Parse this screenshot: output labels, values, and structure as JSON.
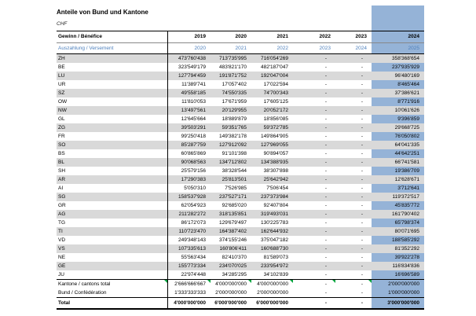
{
  "title": "Anteile von Bund und Kantone",
  "currency": "CHF",
  "colors": {
    "highlight_column": "#95B3D7",
    "row_stripe": "#D9D9D9",
    "secondary_header_text": "#4F81BD",
    "comment_flag": "#00A33C"
  },
  "header": {
    "row1_label": "Gewinn / Bénéfice",
    "row1_years": [
      "2019",
      "2020",
      "2021",
      "2022",
      "2023",
      "2024"
    ],
    "row2_label": "Auszahlung / Versement",
    "row2_years": [
      "2020",
      "2021",
      "2022",
      "2023",
      "2024",
      "2025"
    ]
  },
  "table": {
    "rows": [
      {
        "label": "ZH",
        "values": [
          "473'760'438",
          "713'735'995",
          "716'054'269",
          "-",
          "-",
          "358'368'654"
        ]
      },
      {
        "label": "BE",
        "values": [
          "323'549'179",
          "483'821'170",
          "482'187'047",
          "-",
          "-",
          "237'935'929"
        ]
      },
      {
        "label": "LU",
        "values": [
          "127'794'459",
          "191'871'752",
          "192'047'004",
          "-",
          "-",
          "96'480'169"
        ]
      },
      {
        "label": "UR",
        "values": [
          "11'389'741",
          "17'057'402",
          "17'022'594",
          "-",
          "-",
          "8'465'464"
        ]
      },
      {
        "label": "SZ",
        "values": [
          "49'558'185",
          "74'550'335",
          "74'700'343",
          "-",
          "-",
          "37'386'621"
        ]
      },
      {
        "label": "OW",
        "values": [
          "11'810'053",
          "17'671'959",
          "17'605'125",
          "-",
          "-",
          "8'771'916"
        ]
      },
      {
        "label": "NW",
        "values": [
          "13'497'561",
          "20'129'955",
          "20'052'172",
          "-",
          "-",
          "10'061'626"
        ]
      },
      {
        "label": "GL",
        "values": [
          "12'645'664",
          "18'889'879",
          "18'856'085",
          "-",
          "-",
          "9'396'859"
        ]
      },
      {
        "label": "ZG",
        "values": [
          "39'503'291",
          "59'351'765",
          "59'372'785",
          "-",
          "-",
          "29'668'725"
        ]
      },
      {
        "label": "FR",
        "values": [
          "99'250'418",
          "149'382'178",
          "149'864'905",
          "-",
          "-",
          "76'050'802"
        ]
      },
      {
        "label": "SO",
        "values": [
          "85'287'759",
          "127'912'092",
          "127'969'055",
          "-",
          "-",
          "64'041'335"
        ]
      },
      {
        "label": "BS",
        "values": [
          "60'865'869",
          "91'101'398",
          "90'894'057",
          "-",
          "-",
          "44'642'251"
        ]
      },
      {
        "label": "BL",
        "values": [
          "90'068'563",
          "134'712'802",
          "134'388'935",
          "-",
          "-",
          "66'741'581"
        ]
      },
      {
        "label": "SH",
        "values": [
          "25'579'156",
          "38'328'544",
          "38'307'898",
          "-",
          "-",
          "19'386'709"
        ]
      },
      {
        "label": "AR",
        "values": [
          "17'290'383",
          "25'813'501",
          "25'642'942",
          "-",
          "-",
          "12'628'671"
        ]
      },
      {
        "label": "AI",
        "values": [
          "5'050'310",
          "7'526'985",
          "7'506'454",
          "-",
          "-",
          "3'712'641"
        ]
      },
      {
        "label": "SG",
        "values": [
          "158'537'928",
          "237'527'171",
          "237'373'984",
          "-",
          "-",
          "119'372'517"
        ]
      },
      {
        "label": "GR",
        "values": [
          "62'054'923",
          "92'685'020",
          "92'407'804",
          "-",
          "-",
          "45'835'772"
        ]
      },
      {
        "label": "AG",
        "values": [
          "211'282'272",
          "318'135'851",
          "319'493'031",
          "-",
          "-",
          "161'790'402"
        ]
      },
      {
        "label": "TG",
        "values": [
          "86'172'073",
          "129'679'497",
          "130'225'783",
          "-",
          "-",
          "65'798'374"
        ]
      },
      {
        "label": "TI",
        "values": [
          "110'723'470",
          "164'387'402",
          "162'644'932",
          "-",
          "-",
          "80'071'695"
        ]
      },
      {
        "label": "VD",
        "values": [
          "249'348'143",
          "374'155'246",
          "375'047'182",
          "-",
          "-",
          "188'585'292"
        ]
      },
      {
        "label": "VS",
        "values": [
          "107'335'613",
          "160'806'411",
          "160'688'730",
          "-",
          "-",
          "81'352'292"
        ]
      },
      {
        "label": "NE",
        "values": [
          "55'563'434",
          "82'410'370",
          "81'589'073",
          "-",
          "-",
          "39'922'278"
        ]
      },
      {
        "label": "GE",
        "values": [
          "155'773'334",
          "234'070'025",
          "233'954'972",
          "-",
          "-",
          "116'834'836"
        ]
      },
      {
        "label": "JU",
        "values": [
          "22'974'448",
          "34'285'295",
          "34'102'839",
          "-",
          "-",
          "16'696'589"
        ]
      }
    ],
    "totals": [
      {
        "label": "Kantone / cantons total",
        "values": [
          "2'666'666'667",
          "4'000'000'000",
          "4'000'000'000",
          "-",
          "-",
          "2'000'000'000"
        ],
        "style": "subtotal",
        "flags": true
      },
      {
        "label": "Bund / Confédération",
        "values": [
          "1'333'333'333",
          "2'000'000'000",
          "2'000'000'000",
          "-",
          "-",
          "1'000'000'000"
        ],
        "style": "bund",
        "flags": false
      },
      {
        "label": "Total",
        "values": [
          "4'000'000'000",
          "6'000'000'000",
          "6'000'000'000",
          "-",
          "-",
          "3'000'000'000"
        ],
        "style": "grand",
        "flags": false
      }
    ]
  }
}
